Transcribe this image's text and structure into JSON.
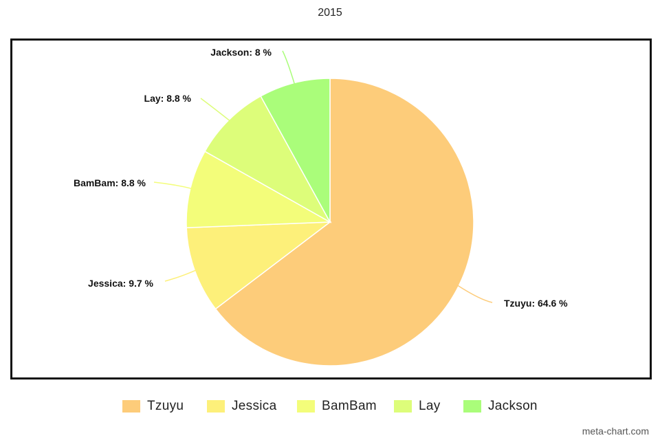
{
  "chart_data": {
    "type": "pie",
    "title": "2015",
    "slices": [
      {
        "label": "Tzuyu",
        "value": 64.6,
        "color": "#FDCC7A",
        "text": "Tzuyu: 64.6 %"
      },
      {
        "label": "Jessica",
        "value": 9.7,
        "color": "#FDF07A",
        "text": "Jessica: 9.7 %"
      },
      {
        "label": "BamBam",
        "value": 8.8,
        "color": "#F3FD7A",
        "text": "BamBam: 8.8 %"
      },
      {
        "label": "Lay",
        "value": 8.8,
        "color": "#DDFD7A",
        "text": "Lay: 8.8 %"
      },
      {
        "label": "Jackson",
        "value": 8,
        "color": "#AAFD7A",
        "text": "Jackson: 8 %"
      }
    ],
    "legend_position": "bottom",
    "start_angle_deg": 0,
    "direction": "clockwise"
  },
  "watermark": "meta-chart.com"
}
